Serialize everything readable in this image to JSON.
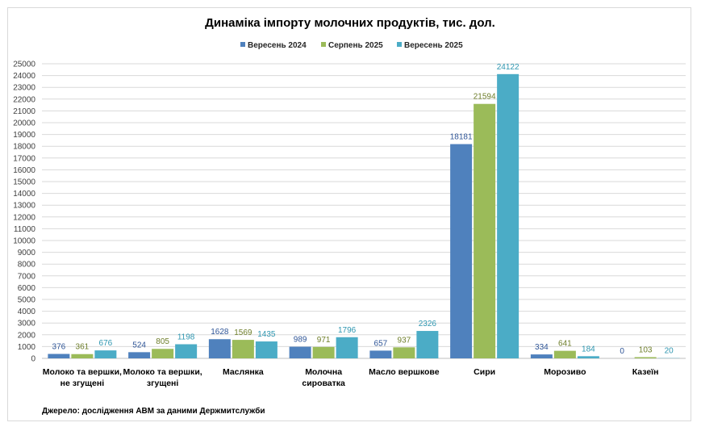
{
  "chart_data": {
    "type": "bar",
    "title": "Динаміка імпорту молочних продуктів, тис. дол.",
    "categories": [
      [
        "Молоко  та вершки,",
        "не згущені"
      ],
      [
        "Молоко  та вершки,",
        "згущені"
      ],
      [
        "Маслянка"
      ],
      [
        "Молочна",
        "сироватка"
      ],
      [
        "Масло  вершкове"
      ],
      [
        "Сири"
      ],
      [
        "Морозиво"
      ],
      [
        "Казеїн"
      ]
    ],
    "series": [
      {
        "name": "Вересень 2024",
        "color": "#4F81BD",
        "label_color": "#2F5597",
        "values": [
          376,
          524,
          1628,
          989,
          657,
          18181,
          334,
          0
        ]
      },
      {
        "name": "Серпень 2025",
        "color": "#9BBB59",
        "label_color": "#6E7E2A",
        "values": [
          361,
          805,
          1569,
          971,
          937,
          21594,
          641,
          103
        ]
      },
      {
        "name": "Вересень 2025",
        "color": "#4BACC6",
        "label_color": "#2E96B0",
        "values": [
          676,
          1198,
          1435,
          1796,
          2326,
          24122,
          184,
          20
        ]
      }
    ],
    "ylim": [
      0,
      25000
    ],
    "ytick_step": 1000,
    "grid": true,
    "legend_position": "top-center",
    "xlabel": "",
    "ylabel": ""
  },
  "source": "Джерело: дослідження  АВМ за даними  Держмитслужби"
}
